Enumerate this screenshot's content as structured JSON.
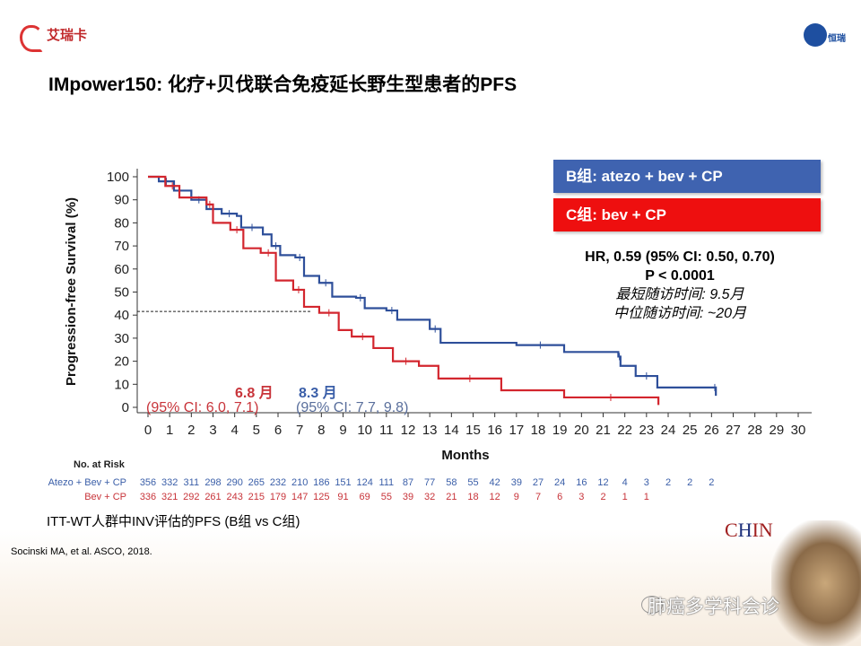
{
  "header": {
    "title": "IMpower150: 化疗+贝伐联合免疫延长野生型患者的PFS",
    "logo_left": "艾瑞卡",
    "logo_right": "恒瑞"
  },
  "legend": {
    "b": "B组: atezo + bev + CP",
    "c": "C组: bev + CP",
    "b_color": "#3a5ea8",
    "c_color": "#ee1111"
  },
  "stats": {
    "hr": "HR, 0.59 (95% CI: 0.50, 0.70)",
    "p": "P < 0.0001",
    "min_follow": "最短随访时间: 9.5月",
    "median_follow": "中位随访时间: ~20月"
  },
  "medians": {
    "c_value": "6.8 月",
    "c_ci": "(95% CI: 6.0, 7.1)",
    "b_value": "8.3 月",
    "b_ci": "(95% CI: 7.7, 9.8)"
  },
  "risk": {
    "title": "No. at Risk",
    "rows": [
      {
        "label": "Atezo + Bev + CP",
        "color": "#3a5ea8",
        "values": [
          "356",
          "332",
          "311",
          "298",
          "290",
          "265",
          "232",
          "210",
          "186",
          "151",
          "124",
          "111",
          "87",
          "77",
          "58",
          "55",
          "42",
          "39",
          "27",
          "24",
          "16",
          "12",
          "4",
          "3",
          "2",
          "2",
          "2"
        ]
      },
      {
        "label": "Bev + CP",
        "color": "#c8343a",
        "values": [
          "336",
          "321",
          "292",
          "261",
          "243",
          "215",
          "179",
          "147",
          "125",
          "91",
          "69",
          "55",
          "39",
          "32",
          "21",
          "18",
          "12",
          "9",
          "7",
          "6",
          "3",
          "2",
          "1",
          "1"
        ]
      }
    ]
  },
  "caption": "ITT-WT人群中INV评估的PFS (B组 vs C组)",
  "reference": "Socinski MA, et al. ASCO, 2018.",
  "watermark": "肺癌多学科会诊",
  "corner_logo": "CHIN",
  "chart_data": {
    "type": "line",
    "title": "",
    "xlabel": "Months",
    "ylabel": "Progression-free Survival (%)",
    "xlim": [
      0,
      30
    ],
    "ylim": [
      0,
      100
    ],
    "xticks": [
      0,
      1,
      2,
      3,
      4,
      5,
      6,
      7,
      8,
      9,
      10,
      11,
      12,
      13,
      14,
      15,
      16,
      17,
      18,
      19,
      20,
      21,
      22,
      23,
      24,
      25,
      26,
      27,
      28,
      29,
      30
    ],
    "yticks": [
      0,
      10,
      20,
      30,
      40,
      50,
      60,
      70,
      80,
      90,
      100
    ],
    "step": true,
    "reference_line": {
      "y": 41.6,
      "x_to": 7.5,
      "style": "dashed"
    },
    "series": [
      {
        "name": "Atezo + Bev + CP",
        "color": "#2e4f9a",
        "x": [
          0,
          0.5,
          1.2,
          2.0,
          2.7,
          3.4,
          4.1,
          4.3,
          5.3,
          5.7,
          6.1,
          6.8,
          7.2,
          7.9,
          8.5,
          9.6,
          10,
          11,
          11.5,
          13,
          13.5,
          17,
          19.2,
          21.7,
          21.8,
          22.5,
          23.5,
          26.1,
          26.2
        ],
        "y": [
          100,
          98,
          94,
          90,
          86,
          84,
          83,
          78,
          75,
          70,
          66,
          65,
          57,
          54,
          48,
          47.5,
          43,
          42,
          38,
          34,
          28,
          27,
          24,
          22,
          18,
          13.6,
          8.6,
          8.6,
          5
        ]
      },
      {
        "name": "Bev + CP",
        "color": "#d3262e",
        "x": [
          0,
          0.8,
          1.45,
          2.7,
          3.0,
          3.8,
          4.4,
          5.2,
          5.9,
          6.7,
          7.2,
          7.9,
          8.8,
          9.4,
          10.4,
          11.3,
          12.5,
          13.4,
          16.3,
          19.2,
          23.5,
          23.55
        ],
        "y": [
          100,
          96,
          91,
          88,
          80,
          77,
          69,
          67,
          55,
          51,
          43.6,
          41,
          33.5,
          30.7,
          25.7,
          20,
          18,
          12.5,
          7.4,
          4.3,
          4.3,
          1
        ]
      }
    ]
  }
}
